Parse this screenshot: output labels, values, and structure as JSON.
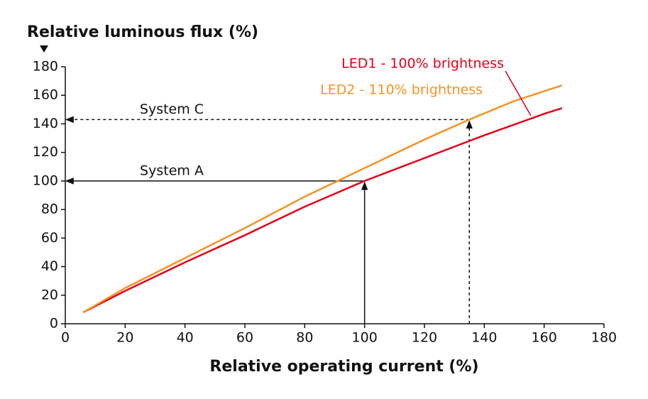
{
  "chart_data": {
    "type": "line",
    "xlabel": "Relative operating current (%)",
    "ylabel": "Relative luminous flux (%)",
    "xlim": [
      0,
      180
    ],
    "ylim": [
      0,
      180
    ],
    "xticks": [
      0,
      20,
      40,
      60,
      80,
      100,
      120,
      140,
      160,
      180
    ],
    "yticks": [
      0,
      20,
      40,
      60,
      80,
      100,
      120,
      140,
      160,
      180
    ],
    "series": [
      {
        "name": "LED1 - 100% brightness",
        "color": "#e3001b",
        "x": [
          6,
          20,
          40,
          60,
          80,
          100,
          120,
          140,
          160,
          166
        ],
        "values": [
          8,
          23,
          43,
          62,
          82,
          100,
          116,
          132,
          147,
          151
        ]
      },
      {
        "name": "LED2 - 110% brightness",
        "color": "#f39325",
        "x": [
          6,
          20,
          40,
          60,
          80,
          100,
          120,
          135,
          150,
          166
        ],
        "values": [
          8,
          25,
          46,
          67,
          89,
          109,
          129,
          143,
          156,
          167
        ]
      }
    ],
    "annotations": [
      {
        "text": "System A",
        "x": 100,
        "y": 100,
        "dashed": false
      },
      {
        "text": "System C",
        "x": 135,
        "y": 143,
        "dashed": true
      }
    ]
  }
}
